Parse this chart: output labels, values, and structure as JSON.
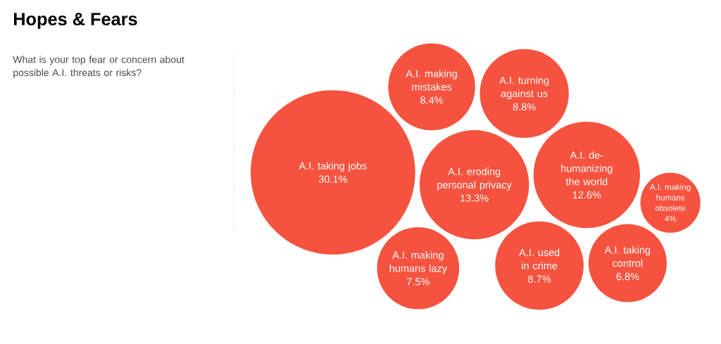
{
  "chart_data": {
    "type": "other",
    "title": "Hopes & Fears",
    "subtitle": "What is your top fear or concern about possible A.I. threats or risks?",
    "categories": [
      "A.I. taking jobs",
      "A.I. eroding personal privacy",
      "A.I. de-humanizing the world",
      "A.I. turning against us",
      "A.I. used in crime",
      "A.I. making mistakes",
      "A.I. making humans lazy",
      "A.I. taking control",
      "A.I. making humans obsolete"
    ],
    "values": [
      30.1,
      13.3,
      12.6,
      8.8,
      8.7,
      8.4,
      7.5,
      6.8,
      4
    ],
    "value_labels": [
      "30.1%",
      "13.3%",
      "12.6%",
      "8.8%",
      "8.7%",
      "8.4%",
      "7.5%",
      "6.8%",
      "4%"
    ],
    "color": "#f5533f"
  }
}
